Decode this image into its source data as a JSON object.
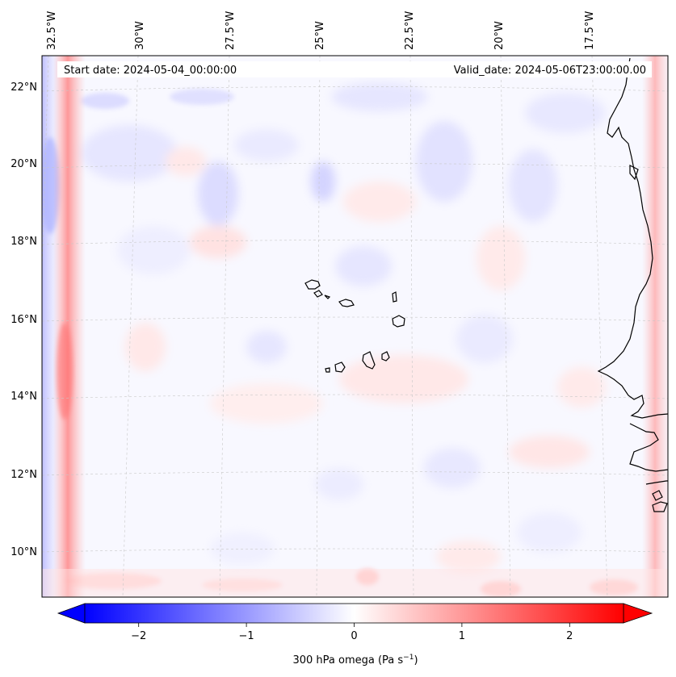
{
  "header": {
    "start_date": "Start date: 2024-05-04_00:00:00",
    "valid_date": "Valid_date: 2024-05-06T23:00:00.00"
  },
  "map": {
    "lon_labels": [
      "32.5°W",
      "30°W",
      "27.5°W",
      "25°W",
      "22.5°W",
      "20°W",
      "17.5°W"
    ],
    "lat_labels": [
      "22°N",
      "20°N",
      "18°N",
      "16°N",
      "14°N",
      "12°N",
      "10°N"
    ],
    "gridlines": true,
    "colors": {
      "neg_max": "#0000ff",
      "pos_max": "#ff0000",
      "neutral": "#ffffff",
      "coast": "#000000"
    }
  },
  "colorbar": {
    "tick_labels": [
      "−2",
      "−1",
      "0",
      "1",
      "2"
    ],
    "ticks": [
      -2,
      -1,
      0,
      1,
      2
    ],
    "range": [
      -2.5,
      2.5
    ],
    "label": "300 hPa omega (Pa s",
    "label_sup": "−1",
    "label_end": ")",
    "cmap": "bwr",
    "extend": "both"
  }
}
